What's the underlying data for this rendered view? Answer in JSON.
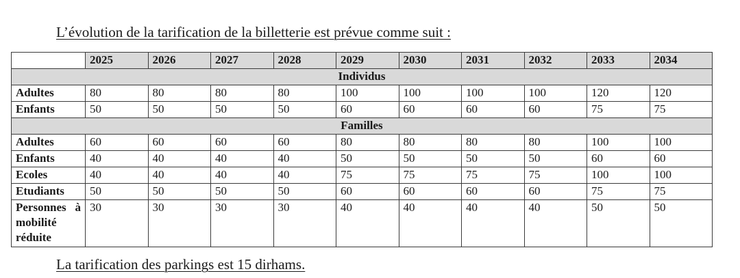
{
  "title": "L’évolution de la tarification de la billetterie est prévue comme suit :",
  "table": {
    "years": [
      "2025",
      "2026",
      "2027",
      "2028",
      "2029",
      "2030",
      "2031",
      "2032",
      "2033",
      "2034"
    ],
    "sections": [
      {
        "name": "Individus",
        "rows": [
          {
            "label": "Adultes",
            "values": [
              "80",
              "80",
              "80",
              "80",
              "100",
              "100",
              "100",
              "100",
              "120",
              "120"
            ]
          },
          {
            "label": "Enfants",
            "values": [
              "50",
              "50",
              "50",
              "50",
              "60",
              "60",
              "60",
              "60",
              "75",
              "75"
            ]
          }
        ]
      },
      {
        "name": "Familles",
        "rows": [
          {
            "label": "Adultes",
            "values": [
              "60",
              "60",
              "60",
              "60",
              "80",
              "80",
              "80",
              "80",
              "100",
              "100"
            ]
          },
          {
            "label": "Enfants",
            "values": [
              "40",
              "40",
              "40",
              "40",
              "50",
              "50",
              "50",
              "50",
              "60",
              "60"
            ]
          },
          {
            "label": "Ecoles",
            "values": [
              "40",
              "40",
              "40",
              "40",
              "75",
              "75",
              "75",
              "75",
              "100",
              "100"
            ]
          },
          {
            "label": "Etudiants",
            "values": [
              "50",
              "50",
              "50",
              "50",
              "60",
              "60",
              "60",
              "60",
              "75",
              "75"
            ]
          },
          {
            "label": "Personnes à mobilité réduite",
            "values": [
              "30",
              "30",
              "30",
              "30",
              "40",
              "40",
              "40",
              "40",
              "50",
              "50"
            ]
          }
        ]
      }
    ]
  },
  "footer": "La tarification des parkings est 15 dirhams."
}
